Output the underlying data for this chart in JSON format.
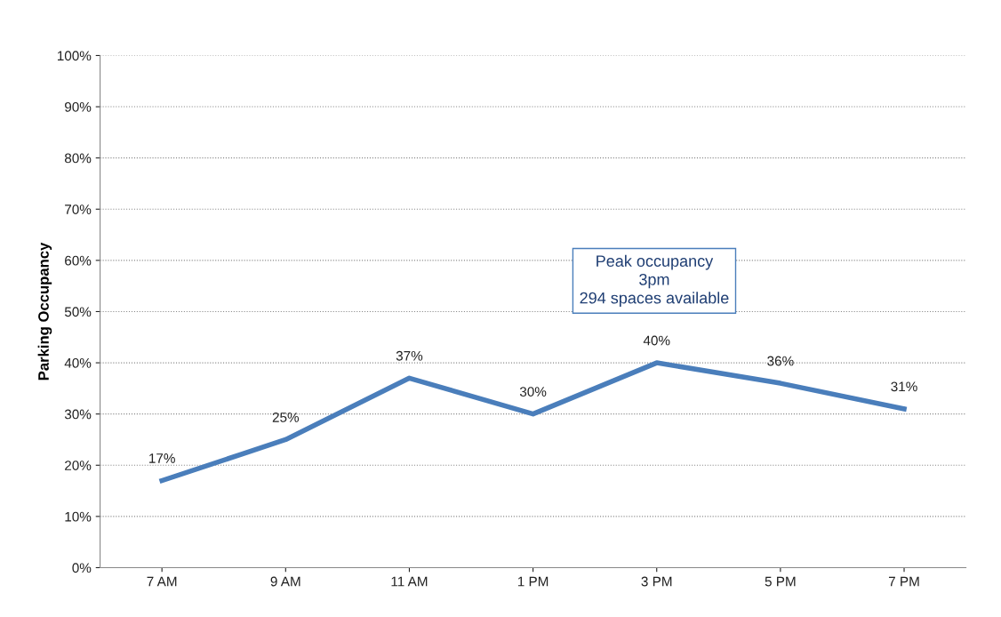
{
  "chart_data": {
    "type": "line",
    "ylabel": "Parking Occupancy",
    "categories": [
      "7 AM",
      "9 AM",
      "11 AM",
      "1 PM",
      "3 PM",
      "5 PM",
      "7 PM"
    ],
    "series": [
      {
        "color": "#4a7ebb",
        "values": [
          17,
          25,
          37,
          30,
          40,
          36,
          31
        ],
        "value_labels": [
          "17%",
          "25%",
          "37%",
          "30%",
          "40%",
          "36%",
          "31%"
        ]
      }
    ],
    "ylim": [
      0,
      100
    ],
    "yticks": [
      {
        "value": 0,
        "label": "0%"
      },
      {
        "value": 10,
        "label": "10%"
      },
      {
        "value": 20,
        "label": "20%"
      },
      {
        "value": 30,
        "label": "30%"
      },
      {
        "value": 40,
        "label": "40%"
      },
      {
        "value": 50,
        "label": "50%"
      },
      {
        "value": 60,
        "label": "60%"
      },
      {
        "value": 70,
        "label": "70%"
      },
      {
        "value": 80,
        "label": "80%"
      },
      {
        "value": 90,
        "label": "90%"
      },
      {
        "value": 100,
        "label": "100%"
      }
    ],
    "grid": "y",
    "marker": "none",
    "line_style": "solid",
    "annotations": [
      "Peak occupancy\n3pm\n294 spaces available"
    ]
  }
}
